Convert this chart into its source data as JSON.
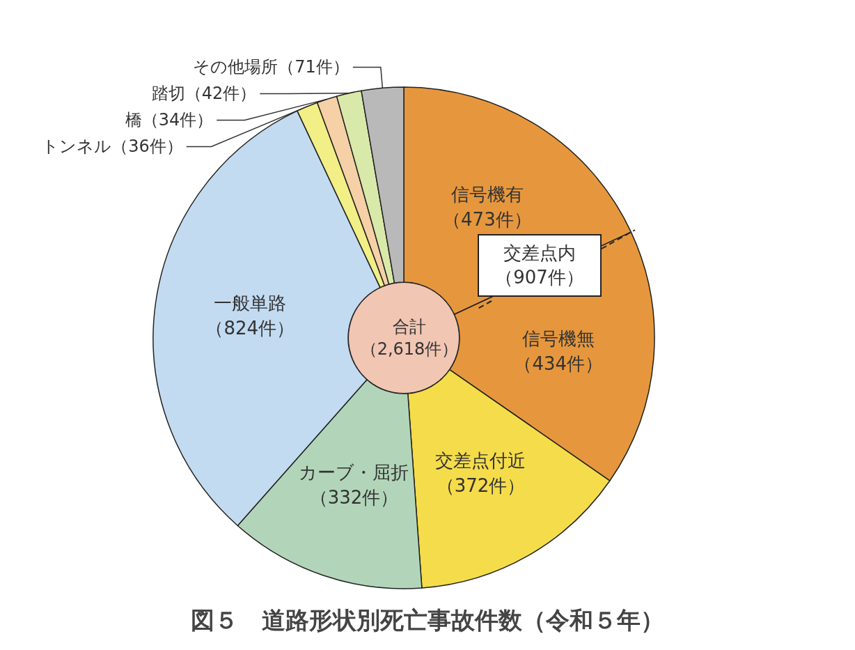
{
  "chart_data": {
    "type": "donut",
    "title": "図５　道路形状別死亡事故件数（令和５年）",
    "categories": [
      "信号機有",
      "信号機無",
      "交差点付近",
      "カーブ・屈折",
      "一般単路",
      "トンネル",
      "橋",
      "踏切",
      "その他場所"
    ],
    "values": [
      473,
      434,
      372,
      332,
      824,
      36,
      34,
      42,
      71
    ],
    "value_labels": [
      "（473件）",
      "（434件）",
      "（372件）",
      "（332件）",
      "（824件）",
      "（36件）",
      "（34件）",
      "（42件）",
      "（71件）"
    ],
    "colors": [
      "#e6973d",
      "#e6973d",
      "#f5dc4a",
      "#b2d5b9",
      "#c2dbf1",
      "#f1ef86",
      "#f6d0a6",
      "#d9e9a9",
      "#b9b9b9"
    ],
    "annotations": [
      "交差点内（907件）",
      "合計（2,618件）"
    ],
    "legend": false
  }
}
